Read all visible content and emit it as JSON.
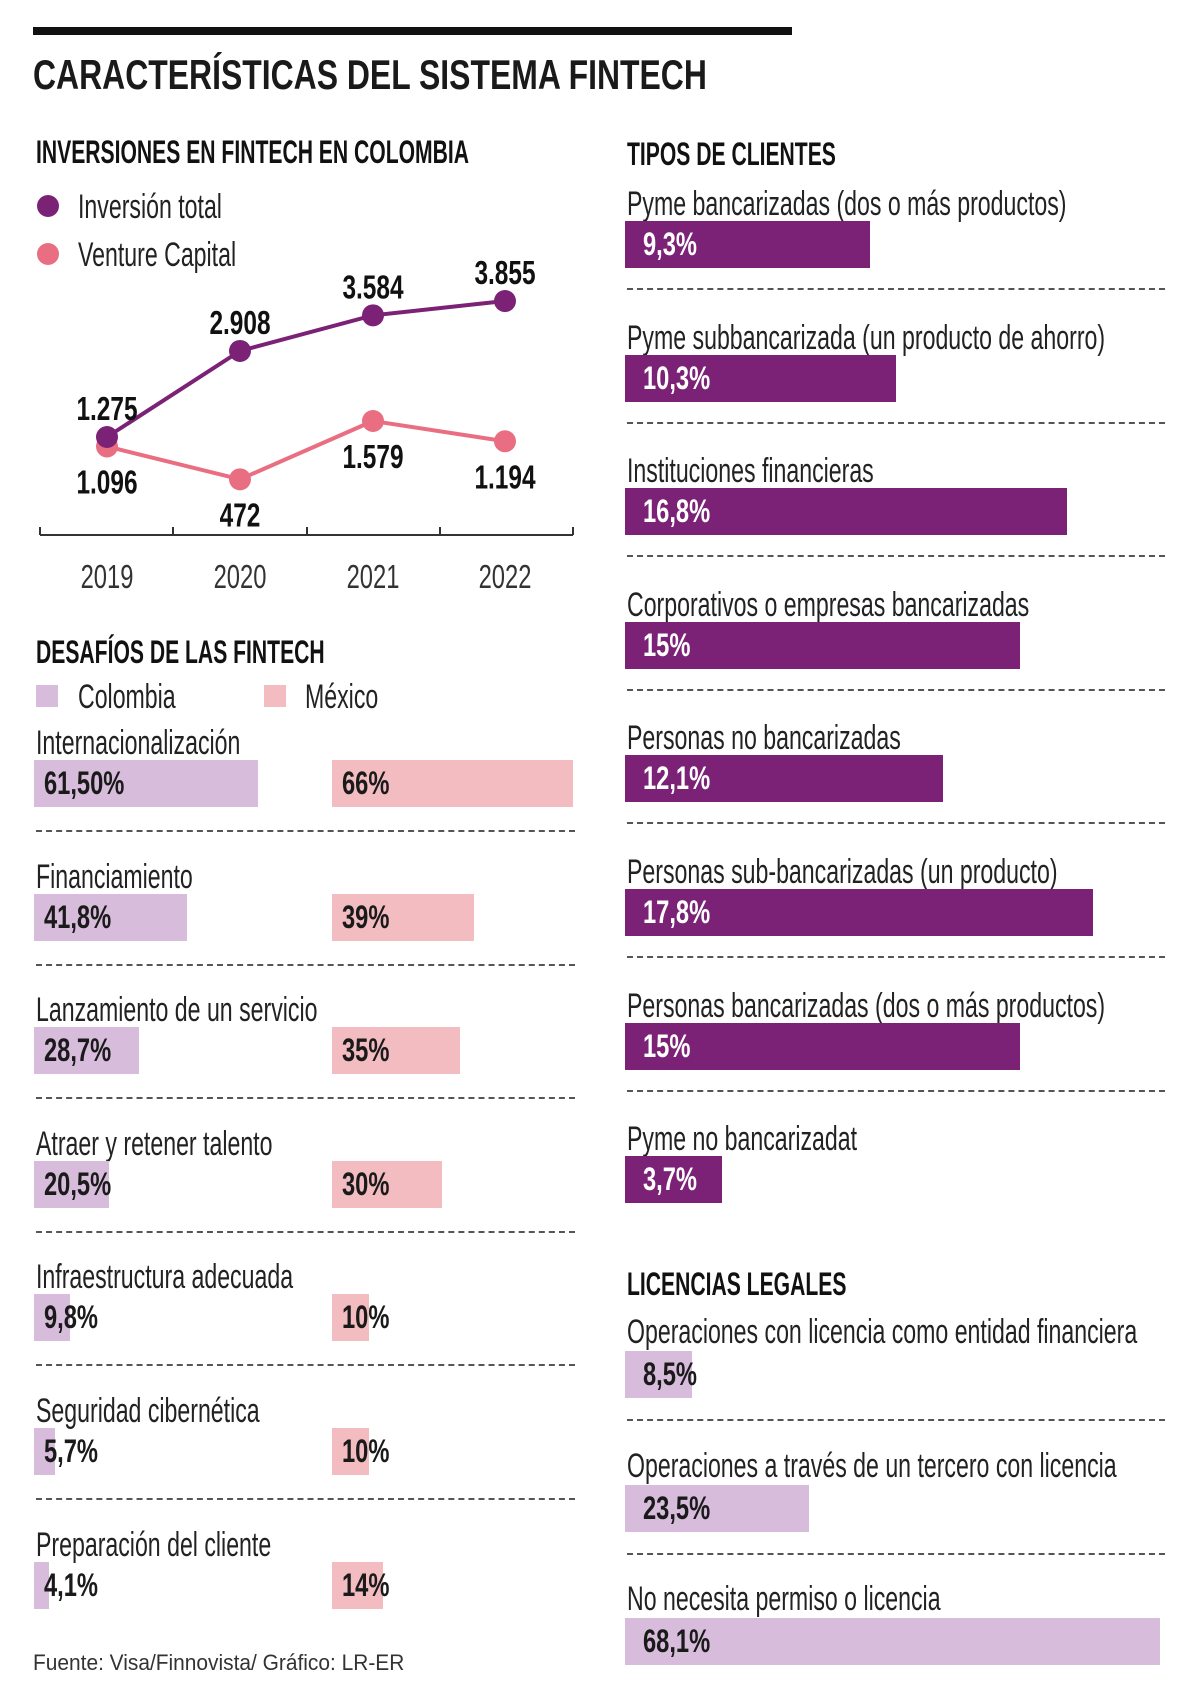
{
  "title": "CARACTERÍSTICAS DEL SISTEMA FINTECH",
  "footer": "Fuente: Visa/Finnovista/ Gráfico: LR-ER",
  "colors": {
    "purple": "#7b2277",
    "pink": "#ea6e82",
    "lilac": "#d8bcdb",
    "light_pink": "#f2bcc1",
    "text_light": "#ffffff",
    "text_dark": "#1a1a1a"
  },
  "investments": {
    "title": "INVERSIONES EN FINTECH EN COLOMBIA",
    "legend": [
      "Inversión total",
      "Venture Capital"
    ]
  },
  "chart_data": {
    "type": "line",
    "title": "INVERSIONES EN FINTECH EN COLOMBIA",
    "categories": [
      "2019",
      "2020",
      "2021",
      "2022"
    ],
    "legend_placement": "top-left",
    "grid": false,
    "series": [
      {
        "name": "Inversión total",
        "color": "#7b2277",
        "values": [
          1275,
          2908,
          3584,
          3855
        ],
        "labels": [
          "1.275",
          "2.908",
          "3.584",
          "3.855"
        ]
      },
      {
        "name": "Venture Capital",
        "color": "#ea6e82",
        "values": [
          1096,
          472,
          1579,
          1194
        ],
        "labels": [
          "1.096",
          "472",
          "1.579",
          "1.194"
        ]
      }
    ]
  },
  "challenges": {
    "title": "DESAFÍOS DE LAS FINTECH",
    "legend": [
      "Colombia",
      "México"
    ],
    "items": [
      {
        "label": "Internacionalización",
        "colombia": 61.5,
        "colombia_label": "61,50%",
        "mexico": 66,
        "mexico_label": "66%"
      },
      {
        "label": "Financiamiento",
        "colombia": 41.8,
        "colombia_label": "41,8%",
        "mexico": 39,
        "mexico_label": "39%"
      },
      {
        "label": "Lanzamiento de un servicio",
        "colombia": 28.7,
        "colombia_label": "28,7%",
        "mexico": 35,
        "mexico_label": "35%"
      },
      {
        "label": "Atraer y retener talento",
        "colombia": 20.5,
        "colombia_label": "20,5%",
        "mexico": 30,
        "mexico_label": "30%"
      },
      {
        "label": "Infraestructura adecuada",
        "colombia": 9.8,
        "colombia_label": "9,8%",
        "mexico": 10,
        "mexico_label": "10%"
      },
      {
        "label": "Seguridad cibernética",
        "colombia": 5.7,
        "colombia_label": "5,7%",
        "mexico": 10,
        "mexico_label": "10%"
      },
      {
        "label": "Preparación del cliente",
        "colombia": 4.1,
        "colombia_label": "4,1%",
        "mexico": 14,
        "mexico_label": "14%"
      }
    ]
  },
  "clients": {
    "title": "TIPOS DE CLIENTES",
    "items": [
      {
        "label": "Pyme bancarizadas (dos o más productos)",
        "value": 9.3,
        "value_label": "9,3%"
      },
      {
        "label": "Pyme subbancarizada (un producto de ahorro)",
        "value": 10.3,
        "value_label": "10,3%"
      },
      {
        "label": "Instituciones financieras",
        "value": 16.8,
        "value_label": "16,8%"
      },
      {
        "label": "Corporativos o empresas bancarizadas",
        "value": 15,
        "value_label": "15%"
      },
      {
        "label": "Personas no bancarizadas",
        "value": 12.1,
        "value_label": "12,1%"
      },
      {
        "label": "Personas sub-bancarizadas (un producto)",
        "value": 17.8,
        "value_label": "17,8%"
      },
      {
        "label": "Personas bancarizadas (dos o más productos)",
        "value": 15,
        "value_label": "15%"
      },
      {
        "label": "Pyme no bancarizadat",
        "value": 3.7,
        "value_label": "3,7%"
      }
    ]
  },
  "licenses": {
    "title": "LICENCIAS LEGALES",
    "items": [
      {
        "label": "Operaciones con licencia como entidad financiera",
        "value": 8.5,
        "value_label": "8,5%"
      },
      {
        "label": "Operaciones a través de un tercero con licencia",
        "value": 23.5,
        "value_label": "23,5%"
      },
      {
        "label": "No necesita permiso o licencia",
        "value": 68.1,
        "value_label": "68,1%"
      }
    ]
  }
}
